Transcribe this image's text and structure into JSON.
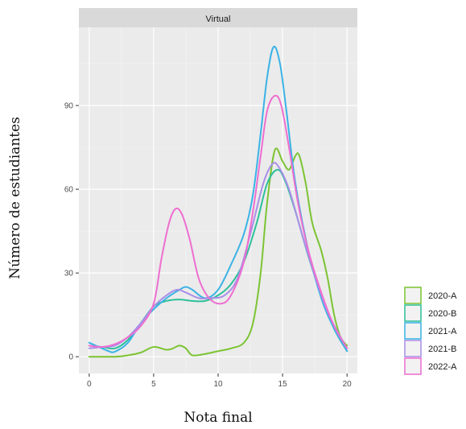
{
  "chart_data": {
    "type": "line",
    "panel": "Virtual",
    "xlabel": "Nota final",
    "ylabel": "Número de estudiantes",
    "xlim": [
      -0.8,
      20.8
    ],
    "ylim": [
      -6,
      118
    ],
    "x_ticks": [
      0,
      5,
      10,
      15,
      20
    ],
    "y_ticks": [
      0,
      30,
      60,
      90
    ],
    "grid": true,
    "legend_position": "right",
    "series": [
      {
        "name": "2020-A",
        "color": "#7cc433",
        "points": [
          [
            0,
            0
          ],
          [
            2,
            0
          ],
          [
            3,
            0.5
          ],
          [
            4,
            1.5
          ],
          [
            5,
            3.5
          ],
          [
            6,
            2.5
          ],
          [
            6.5,
            3
          ],
          [
            7,
            4
          ],
          [
            7.5,
            3
          ],
          [
            8,
            0.5
          ],
          [
            9,
            1
          ],
          [
            10,
            2
          ],
          [
            11,
            3
          ],
          [
            12,
            5
          ],
          [
            12.7,
            12
          ],
          [
            13.3,
            30
          ],
          [
            13.8,
            55
          ],
          [
            14.4,
            74
          ],
          [
            15,
            70
          ],
          [
            15.5,
            67
          ],
          [
            16,
            72
          ],
          [
            16.3,
            72
          ],
          [
            16.8,
            62
          ],
          [
            17.3,
            48
          ],
          [
            18,
            38
          ],
          [
            18.5,
            28
          ],
          [
            19,
            15
          ],
          [
            19.5,
            7
          ],
          [
            20,
            4
          ]
        ]
      },
      {
        "name": "2020-B",
        "color": "#2cc09a",
        "points": [
          [
            0,
            4
          ],
          [
            1,
            3.5
          ],
          [
            2,
            3
          ],
          [
            3,
            6
          ],
          [
            4,
            12
          ],
          [
            5,
            18
          ],
          [
            6,
            20
          ],
          [
            7,
            20.5
          ],
          [
            8,
            20
          ],
          [
            9,
            20
          ],
          [
            10,
            22
          ],
          [
            11,
            26
          ],
          [
            12,
            34
          ],
          [
            13,
            48
          ],
          [
            13.8,
            62
          ],
          [
            14.6,
            67
          ],
          [
            15.2,
            63
          ],
          [
            16,
            52
          ],
          [
            17,
            36
          ],
          [
            18,
            22
          ],
          [
            19,
            10
          ],
          [
            20,
            2
          ]
        ]
      },
      {
        "name": "2021-A",
        "color": "#3bb3e6",
        "points": [
          [
            0,
            5
          ],
          [
            1,
            3
          ],
          [
            1.5,
            2
          ],
          [
            2,
            1.8
          ],
          [
            3,
            5
          ],
          [
            4,
            12
          ],
          [
            5,
            17
          ],
          [
            6,
            21
          ],
          [
            7,
            24
          ],
          [
            7.5,
            25
          ],
          [
            8,
            24
          ],
          [
            9,
            21
          ],
          [
            10,
            24
          ],
          [
            11,
            33
          ],
          [
            12,
            44
          ],
          [
            12.7,
            58
          ],
          [
            13.3,
            80
          ],
          [
            13.8,
            100
          ],
          [
            14.3,
            111
          ],
          [
            14.8,
            105
          ],
          [
            15.3,
            88
          ],
          [
            16,
            62
          ],
          [
            17,
            38
          ],
          [
            18,
            21
          ],
          [
            19,
            10
          ],
          [
            20,
            2
          ]
        ]
      },
      {
        "name": "2021-B",
        "color": "#a98ee8",
        "points": [
          [
            0,
            3
          ],
          [
            1,
            3.5
          ],
          [
            2,
            4
          ],
          [
            3,
            7
          ],
          [
            4,
            12
          ],
          [
            5,
            18
          ],
          [
            6,
            22
          ],
          [
            6.8,
            24
          ],
          [
            7.5,
            23
          ],
          [
            8.5,
            21
          ],
          [
            9.5,
            21
          ],
          [
            10.5,
            22
          ],
          [
            11.5,
            28
          ],
          [
            12.5,
            44
          ],
          [
            13.5,
            62
          ],
          [
            14.2,
            69
          ],
          [
            14.7,
            68
          ],
          [
            15.5,
            60
          ],
          [
            16.5,
            44
          ],
          [
            17.5,
            29
          ],
          [
            18.5,
            16
          ],
          [
            19.5,
            7
          ],
          [
            20,
            3
          ]
        ]
      },
      {
        "name": "2022-A",
        "color": "#ee6ed0",
        "points": [
          [
            0,
            4
          ],
          [
            1,
            3.5
          ],
          [
            2,
            4.5
          ],
          [
            3,
            7
          ],
          [
            4,
            11
          ],
          [
            5,
            19
          ],
          [
            5.6,
            35
          ],
          [
            6.2,
            48
          ],
          [
            6.7,
            53
          ],
          [
            7.2,
            51
          ],
          [
            7.8,
            42
          ],
          [
            8.5,
            28
          ],
          [
            9.3,
            21
          ],
          [
            10.2,
            19
          ],
          [
            11,
            22
          ],
          [
            12,
            34
          ],
          [
            12.7,
            52
          ],
          [
            13.3,
            72
          ],
          [
            13.8,
            88
          ],
          [
            14.4,
            93.5
          ],
          [
            14.9,
            90
          ],
          [
            15.5,
            75
          ],
          [
            16.2,
            55
          ],
          [
            17,
            38
          ],
          [
            18,
            23
          ],
          [
            19,
            11
          ],
          [
            20,
            3
          ]
        ]
      }
    ]
  }
}
